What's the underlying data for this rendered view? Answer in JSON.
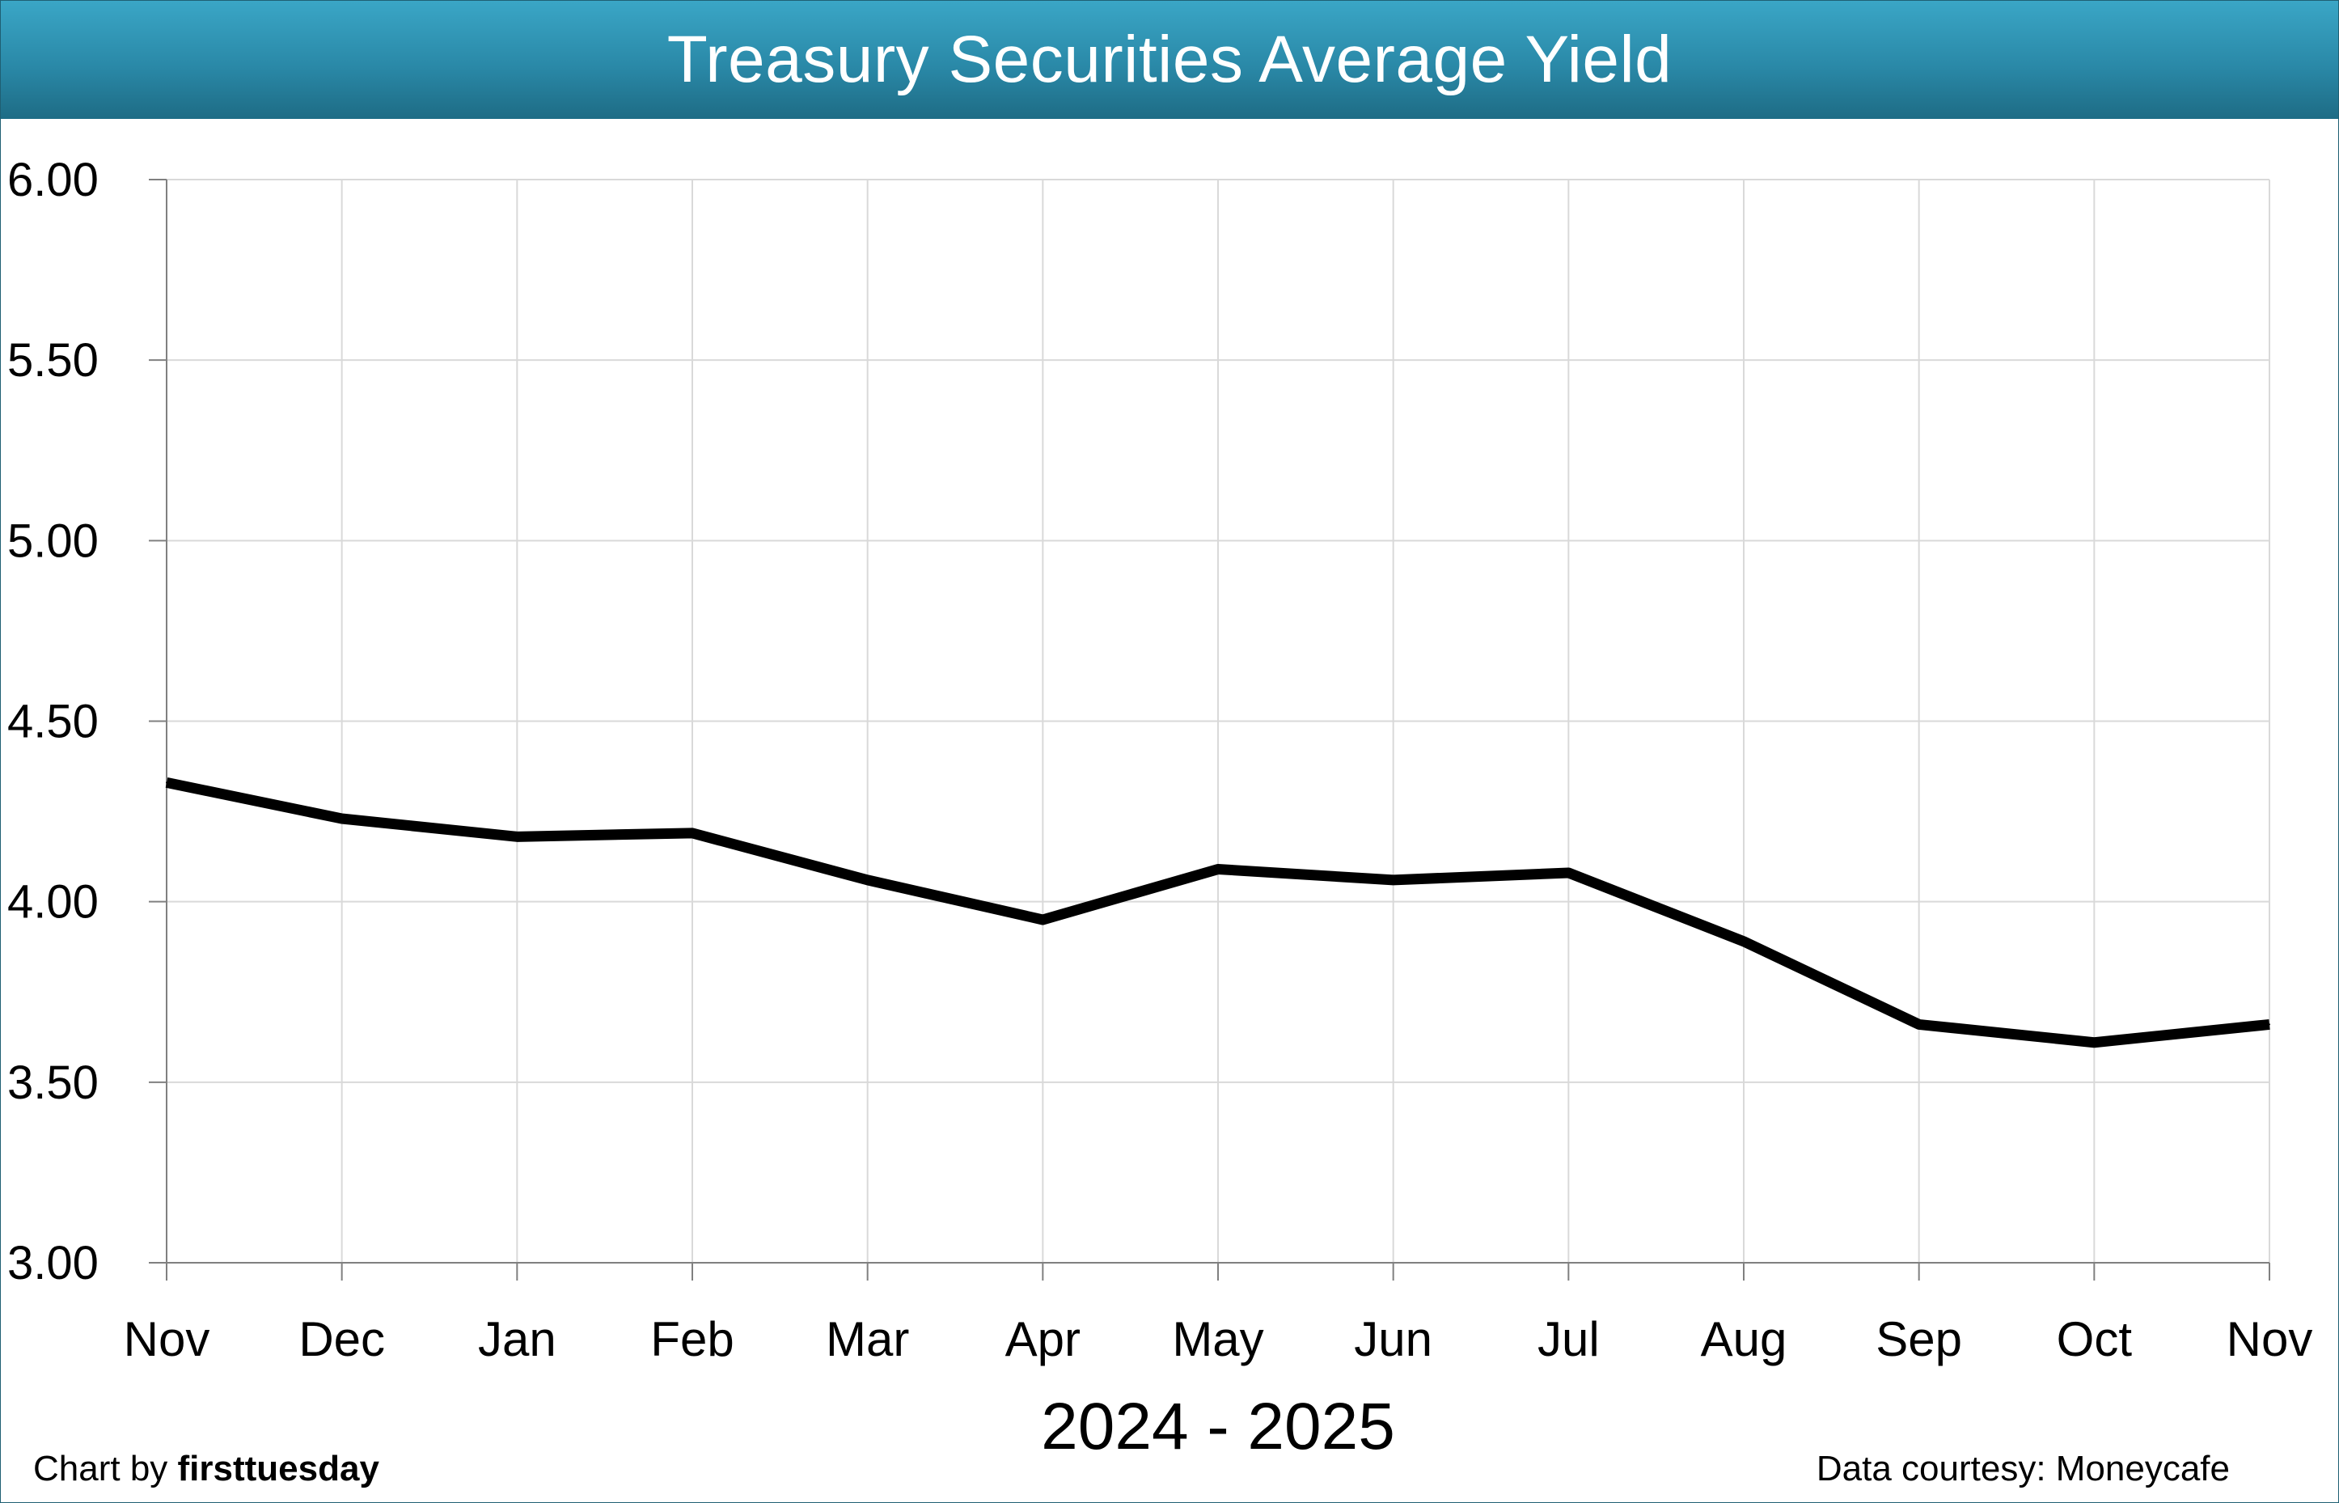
{
  "chart_data": {
    "type": "line",
    "title": "Treasury Securities Average Yield",
    "xlabel": "2024 - 2025",
    "ylabel": "",
    "categories": [
      "Nov",
      "Dec",
      "Jan",
      "Feb",
      "Mar",
      "Apr",
      "May",
      "Jun",
      "Jul",
      "Aug",
      "Sep",
      "Oct",
      "Nov"
    ],
    "series": [
      {
        "values": [
          4.33,
          4.23,
          4.18,
          4.19,
          4.06,
          3.95,
          4.09,
          4.06,
          4.08,
          3.89,
          3.66,
          3.61,
          3.66
        ]
      }
    ],
    "ylim": [
      3.0,
      6.0
    ],
    "yticks": [
      "3.00",
      "3.50",
      "4.00",
      "4.50",
      "5.00",
      "5.50",
      "6.00"
    ],
    "grid": true,
    "legend": "none",
    "line_color": "#000000"
  },
  "footer": {
    "credit_prefix": "Chart by ",
    "credit_brand": "firsttuesday",
    "source": "Data courtesy: Moneycafe"
  },
  "colors": {
    "header_top": "#3aa6c6",
    "header_bottom": "#1e6c85",
    "grid": "#d9d9d9",
    "axis": "#808080"
  }
}
